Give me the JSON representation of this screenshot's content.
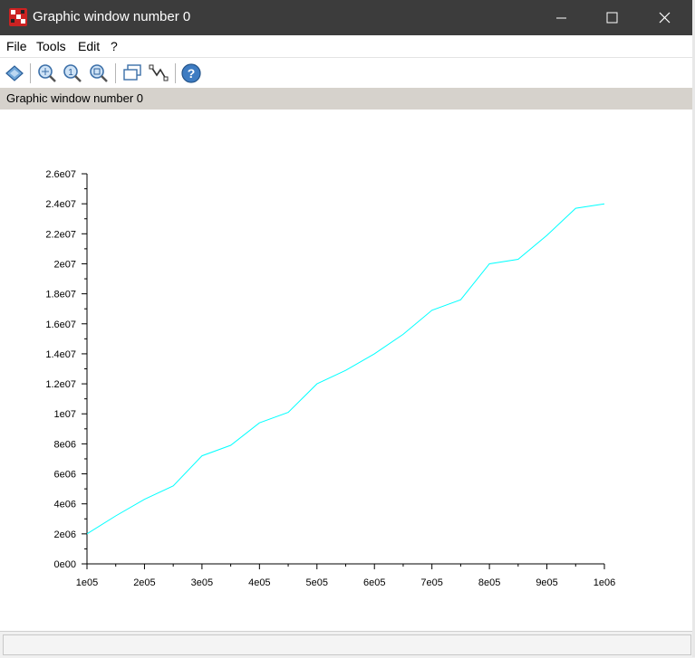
{
  "window": {
    "title": "Graphic window number 0",
    "controls": {
      "minimize": "minimize",
      "maximize": "maximize",
      "close": "close"
    }
  },
  "menu": {
    "file": "File",
    "tools": "Tools",
    "edit": "Edit",
    "help": "?"
  },
  "toolbar": {
    "icons": [
      "2d-3d-rotate-icon",
      "zoom-grid-icon",
      "zoom-original-icon",
      "zoom-icon",
      "data-tip-icon",
      "edit-datatip-icon",
      "help-icon"
    ]
  },
  "infobar": {
    "text": "Graphic window number 0"
  },
  "status": {
    "text": ""
  },
  "colors": {
    "line": "#00ffff",
    "axes": "#000000",
    "titlebar": "#3c3c3c",
    "infobar": "#d6d2cc"
  },
  "chart_data": {
    "type": "line",
    "title": "",
    "xlabel": "",
    "ylabel": "",
    "xlim": [
      100000,
      1000000
    ],
    "ylim": [
      0,
      26000000
    ],
    "grid": false,
    "x_tick_labels": [
      "1e05",
      "2e05",
      "3e05",
      "4e05",
      "5e05",
      "6e05",
      "7e05",
      "8e05",
      "9e05",
      "1e06"
    ],
    "y_tick_labels": [
      "0e00",
      "2e06",
      "4e06",
      "6e06",
      "8e06",
      "1e07",
      "1.2e07",
      "1.4e07",
      "1.6e07",
      "1.8e07",
      "2e07",
      "2.2e07",
      "2.4e07",
      "2.6e07"
    ],
    "series": [
      {
        "x": [
          100000,
          150000,
          200000,
          250000,
          300000,
          350000,
          400000,
          450000,
          500000,
          550000,
          600000,
          650000,
          700000,
          750000,
          800000,
          850000,
          900000,
          950000,
          1000000
        ],
        "y": [
          2000000,
          3200000,
          4300000,
          5200000,
          7200000,
          7900000,
          9400000,
          10100000,
          12000000,
          12900000,
          14000000,
          15300000,
          16900000,
          17600000,
          20000000,
          20300000,
          21900000,
          23700000,
          24000000
        ]
      }
    ]
  }
}
